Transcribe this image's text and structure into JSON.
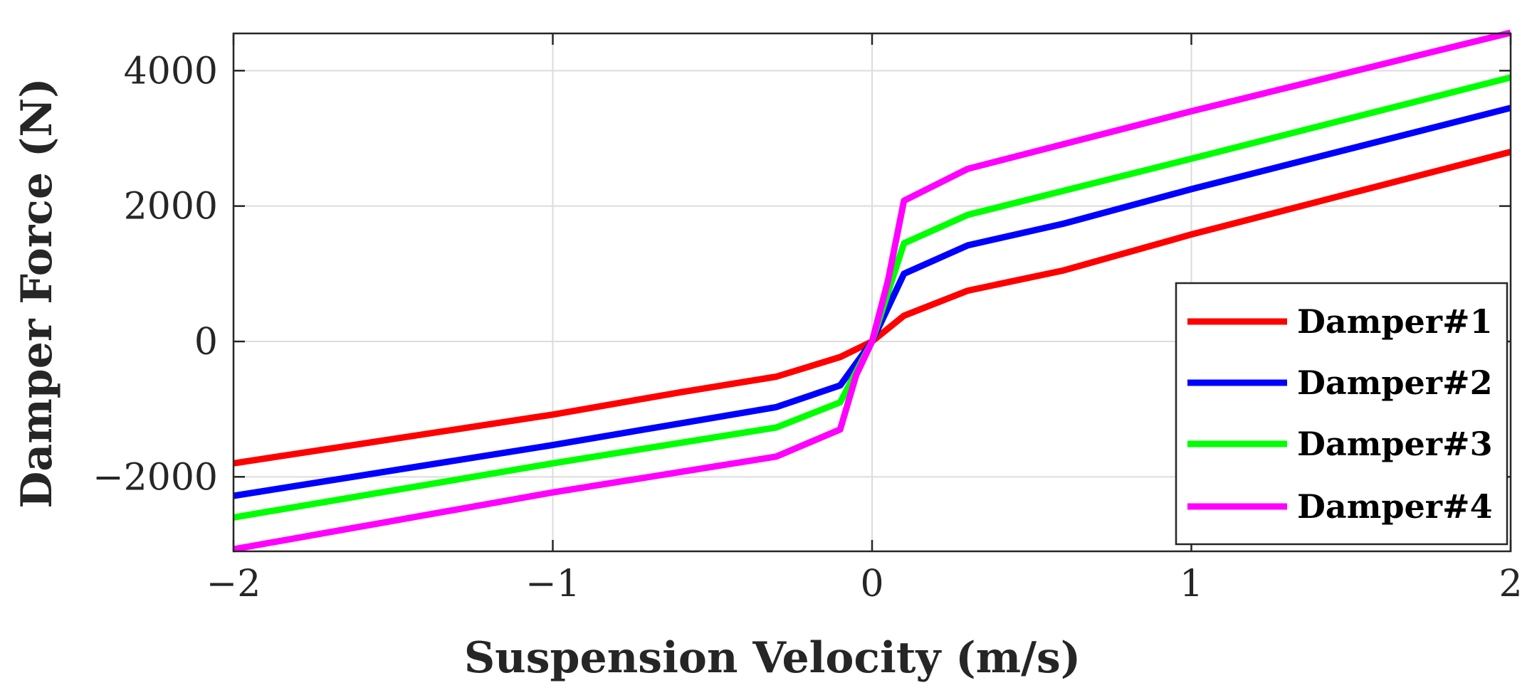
{
  "chart_data": {
    "type": "line",
    "title": "",
    "xlabel": "Suspension Velocity (m/s)",
    "ylabel": "Damper Force (N)",
    "xlim": [
      -2,
      2
    ],
    "ylim": [
      -3100,
      4550
    ],
    "xticks": [
      -2,
      -1,
      0,
      1,
      2
    ],
    "xtick_labels": [
      "−2",
      "−1",
      "0",
      "1",
      "2"
    ],
    "yticks": [
      -2000,
      0,
      2000,
      4000
    ],
    "ytick_labels": [
      "−2000",
      "0",
      "2000",
      "4000"
    ],
    "grid": true,
    "legend_position": "bottom-right",
    "series": [
      {
        "name": "Damper#1",
        "color": "#ff0000",
        "x": [
          -2,
          -1,
          -0.6,
          -0.3,
          -0.1,
          0,
          0.1,
          0.3,
          0.6,
          1,
          2
        ],
        "y": [
          -1800,
          -1080,
          -750,
          -520,
          -230,
          0,
          380,
          750,
          1050,
          1580,
          2800
        ]
      },
      {
        "name": "Damper#2",
        "color": "#0000ff",
        "x": [
          -2,
          -1,
          -0.3,
          -0.1,
          0,
          0.1,
          0.3,
          0.6,
          1,
          2
        ],
        "y": [
          -2280,
          -1530,
          -970,
          -650,
          0,
          1000,
          1420,
          1740,
          2250,
          3450
        ]
      },
      {
        "name": "Damper#3",
        "color": "#00ff00",
        "x": [
          -2,
          -1,
          -0.3,
          -0.1,
          0,
          0.1,
          0.3,
          1,
          2
        ],
        "y": [
          -2600,
          -1800,
          -1270,
          -900,
          0,
          1450,
          1870,
          2700,
          3900
        ]
      },
      {
        "name": "Damper#4",
        "color": "#ff00ff",
        "x": [
          -2,
          -1,
          -0.3,
          -0.1,
          -0.05,
          0,
          0.05,
          0.1,
          0.3,
          1,
          2
        ],
        "y": [
          -3070,
          -2230,
          -1700,
          -1300,
          -500,
          0,
          900,
          2080,
          2550,
          3400,
          4560
        ]
      }
    ]
  }
}
